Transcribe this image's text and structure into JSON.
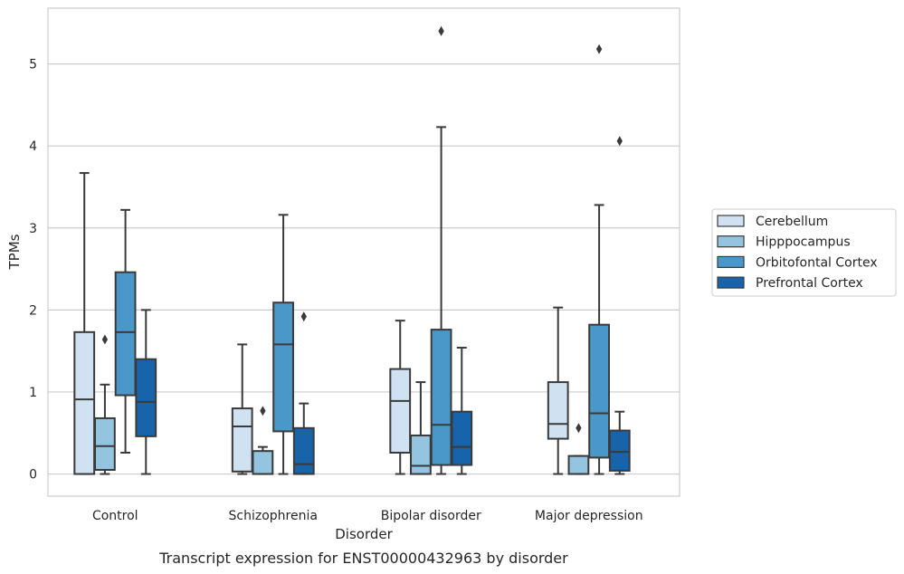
{
  "caption": "Transcript expression for ENST00000432963 by disorder",
  "chart_data": {
    "type": "box",
    "title": "",
    "xlabel": "Disorder",
    "ylabel": "TPMs",
    "ylim": [
      -0.27,
      5.68
    ],
    "yticks": [
      0,
      1,
      2,
      3,
      4,
      5
    ],
    "grid": "horizontal",
    "legend_position": "right",
    "categories": [
      "Control",
      "Schizophrenia",
      "Bipolar disorder",
      "Major depression"
    ],
    "series": [
      {
        "name": "Cerebellum",
        "color": "#d0e1f2",
        "boxes": [
          {
            "whislo": 0.0,
            "q1": 0.0,
            "med": 0.91,
            "q3": 1.73,
            "whishi": 3.67,
            "fliers": []
          },
          {
            "whislo": 0.0,
            "q1": 0.03,
            "med": 0.58,
            "q3": 0.8,
            "whishi": 1.58,
            "fliers": []
          },
          {
            "whislo": 0.0,
            "q1": 0.26,
            "med": 0.89,
            "q3": 1.28,
            "whishi": 1.87,
            "fliers": []
          },
          {
            "whislo": 0.0,
            "q1": 0.43,
            "med": 0.61,
            "q3": 1.12,
            "whishi": 2.03,
            "fliers": []
          }
        ]
      },
      {
        "name": "Hipppocampus",
        "color": "#94c4df",
        "boxes": [
          {
            "whislo": 0.0,
            "q1": 0.05,
            "med": 0.34,
            "q3": 0.68,
            "whishi": 1.09,
            "fliers": [
              1.64
            ]
          },
          {
            "whislo": 0.0,
            "q1": 0.0,
            "med": 0.0,
            "q3": 0.28,
            "whishi": 0.33,
            "fliers": [
              0.77
            ]
          },
          {
            "whislo": 0.0,
            "q1": 0.0,
            "med": 0.1,
            "q3": 0.47,
            "whishi": 1.12,
            "fliers": []
          },
          {
            "whislo": 0.0,
            "q1": 0.0,
            "med": 0.0,
            "q3": 0.22,
            "whishi": 0.22,
            "fliers": [
              0.56
            ]
          }
        ]
      },
      {
        "name": "Orbitofontal Cortex",
        "color": "#4a98c9",
        "boxes": [
          {
            "whislo": 0.26,
            "q1": 0.96,
            "med": 1.73,
            "q3": 2.46,
            "whishi": 3.22,
            "fliers": []
          },
          {
            "whislo": 0.0,
            "q1": 0.52,
            "med": 1.58,
            "q3": 2.09,
            "whishi": 3.16,
            "fliers": []
          },
          {
            "whislo": 0.0,
            "q1": 0.11,
            "med": 0.6,
            "q3": 1.76,
            "whishi": 4.23,
            "fliers": [
              5.4
            ]
          },
          {
            "whislo": 0.0,
            "q1": 0.2,
            "med": 0.74,
            "q3": 1.82,
            "whishi": 3.28,
            "fliers": [
              5.18
            ]
          }
        ]
      },
      {
        "name": "Prefrontal Cortex",
        "color": "#1764ab",
        "boxes": [
          {
            "whislo": 0.0,
            "q1": 0.46,
            "med": 0.88,
            "q3": 1.4,
            "whishi": 2.0,
            "fliers": []
          },
          {
            "whislo": 0.0,
            "q1": 0.0,
            "med": 0.12,
            "q3": 0.56,
            "whishi": 0.86,
            "fliers": [
              1.92
            ]
          },
          {
            "whislo": 0.0,
            "q1": 0.11,
            "med": 0.33,
            "q3": 0.76,
            "whishi": 1.54,
            "fliers": []
          },
          {
            "whislo": 0.0,
            "q1": 0.04,
            "med": 0.27,
            "q3": 0.53,
            "whishi": 0.76,
            "fliers": [
              4.06
            ]
          }
        ]
      }
    ]
  }
}
